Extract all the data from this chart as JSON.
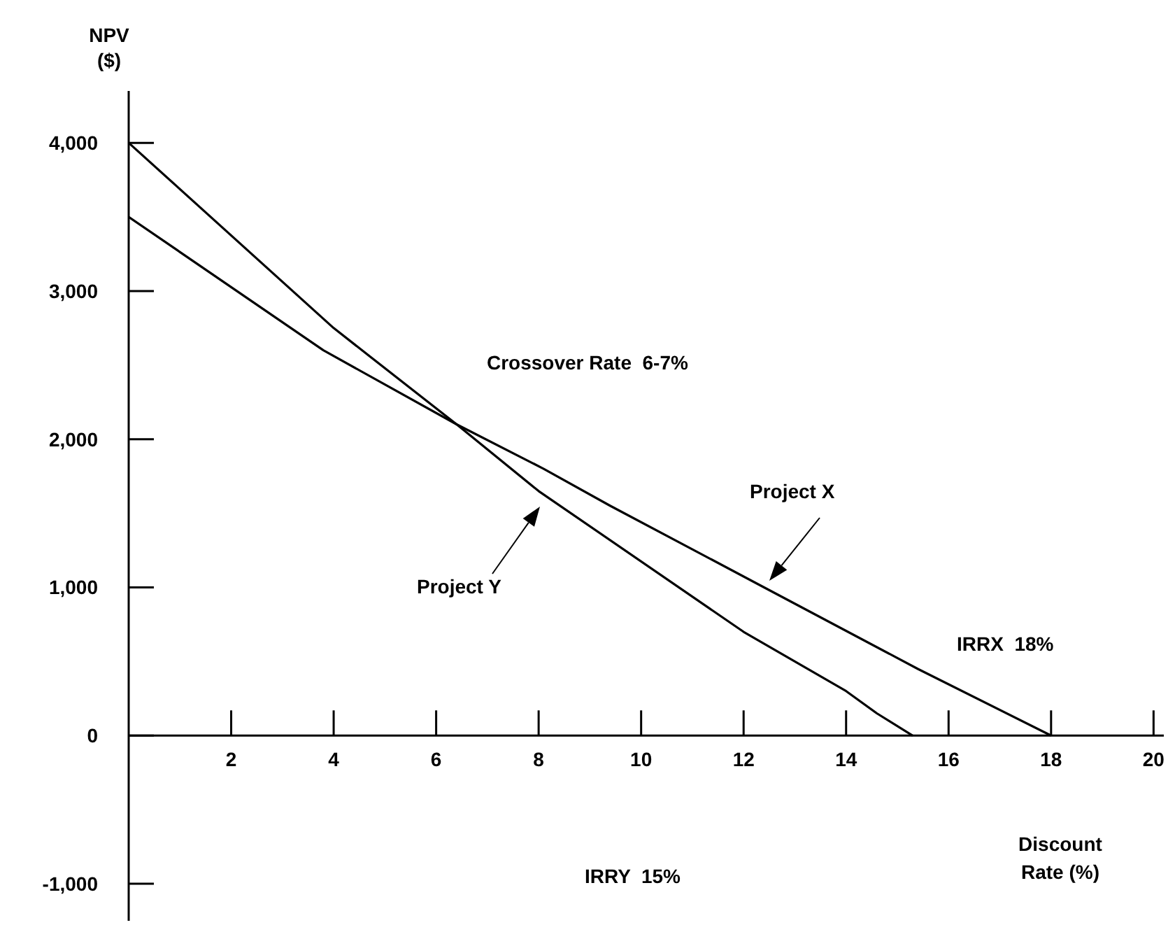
{
  "chart_data": {
    "type": "line",
    "xlabel": "Discount\nRate (%)",
    "ylabel": "NPV\n($)",
    "xlim": [
      0,
      20.2
    ],
    "xticks": [
      2,
      4,
      6,
      8,
      10,
      12,
      14,
      16,
      18,
      20
    ],
    "ylim": [
      -1250,
      4350
    ],
    "yticks": [
      {
        "value": -1000,
        "label": "-1,000"
      },
      0,
      {
        "value": 1000,
        "label": "1,000"
      },
      {
        "value": 2000,
        "label": "2,000"
      },
      {
        "value": 3000,
        "label": "3,000"
      },
      {
        "value": 4000,
        "label": "4,000"
      }
    ],
    "marker": "none",
    "line_style": "solid",
    "series": [
      {
        "color": "#000000",
        "x": [
          0,
          3.8,
          6.4,
          8.1,
          9.4,
          12.4,
          15.4,
          18
        ],
        "values": [
          3500,
          2600,
          2100,
          1800,
          1550,
          1000,
          450,
          0
        ]
      },
      {
        "color": "#000000",
        "x": [
          0,
          4,
          6.4,
          8,
          12,
          14,
          14.6,
          15.3
        ],
        "values": [
          4000,
          2750,
          2100,
          1650,
          700,
          300,
          150,
          0
        ]
      }
    ],
    "annotations": [
      "Crossover Rate  6-7%",
      "Project X",
      "Project Y",
      "IRRX  18%",
      "IRRY  15%"
    ]
  }
}
